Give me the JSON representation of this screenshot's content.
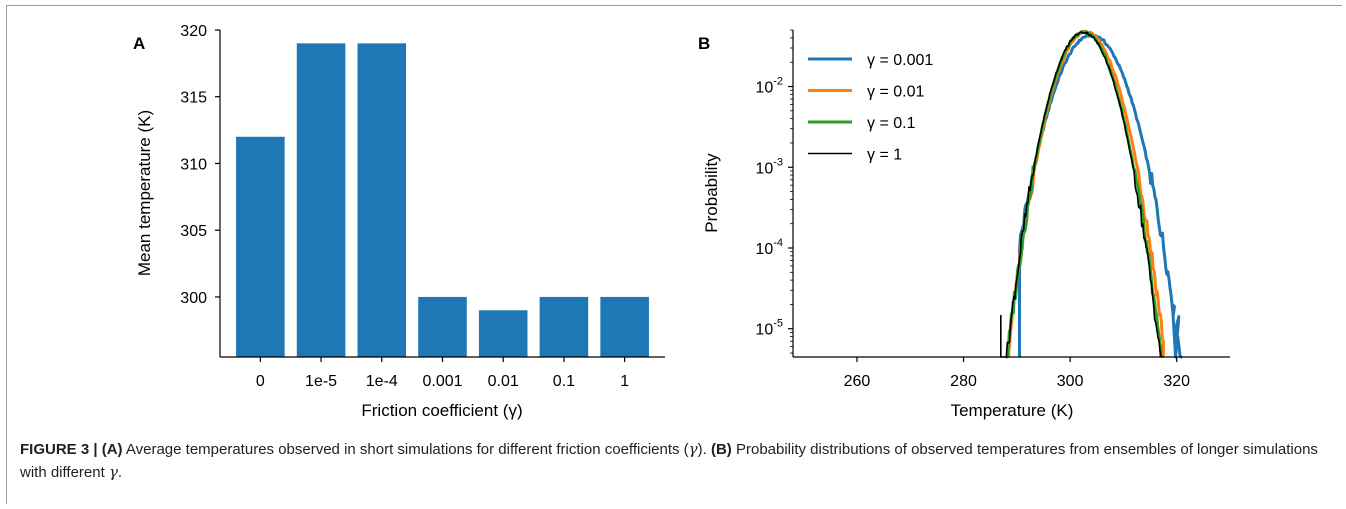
{
  "chart_data": [
    {
      "panel_label": "A",
      "type": "bar",
      "categories": [
        "0",
        "1e-5",
        "1e-4",
        "0.001",
        "0.01",
        "0.1",
        "1"
      ],
      "values": [
        312,
        319,
        319,
        300,
        299,
        300,
        300
      ],
      "xlabel": "Friction coefficient (γ)",
      "ylabel": "Mean temperature (K)",
      "ylim": [
        295.5,
        320
      ],
      "yticks": [
        300,
        305,
        310,
        315,
        320
      ],
      "bar_color": "#1f77b4",
      "grid": false
    },
    {
      "panel_label": "B",
      "type": "line",
      "xlabel": "Temperature (K)",
      "ylabel": "Probability",
      "xlim": [
        248,
        330
      ],
      "ylim_log10": [
        -5.35,
        -1.3
      ],
      "yscale": "log",
      "xticks": [
        260,
        280,
        300,
        320
      ],
      "yticks": [
        {
          "base": "10",
          "exp": "-5",
          "log": -5
        },
        {
          "base": "10",
          "exp": "-4",
          "log": -4
        },
        {
          "base": "10",
          "exp": "-3",
          "log": -3
        },
        {
          "base": "10",
          "exp": "-2",
          "log": -2
        }
      ],
      "legend_position": "top-left",
      "grid": false,
      "series": [
        {
          "name": "γ = 0.001",
          "color": "#1f77b4",
          "width": 3.0,
          "mean": 304.0,
          "sd": 3.9,
          "xmin": 290.5,
          "xmax": 321,
          "x": [
            290.5,
            320.0,
            321.0
          ],
          "peak_prob": 0.0435,
          "tail_probs_log10": [
            -5.35,
            -4.7,
            -5.35
          ]
        },
        {
          "name": "γ = 0.01",
          "color": "#ff7f0e",
          "width": 3.0,
          "mean": 303.0,
          "sd": 3.45,
          "xmin": 288.5,
          "xmax": 317.5,
          "x": [
            288.5,
            317.5
          ],
          "peak_prob": 0.047,
          "tail_probs_log10": [
            -5.35,
            -5.35
          ]
        },
        {
          "name": "γ = 0.1",
          "color": "#2ca02c",
          "width": 3.0,
          "mean": 302.6,
          "sd": 3.35,
          "xmin": 288.0,
          "xmax": 317.0,
          "x": [
            288.0,
            317.0
          ],
          "peak_prob": 0.047,
          "tail_probs_log10": [
            -5.35,
            -5.35
          ]
        },
        {
          "name": "γ = 1",
          "color": "#000000",
          "width": 1.6,
          "mean": 302.5,
          "sd": 3.35,
          "xmin": 287.0,
          "xmax": 317.5,
          "x": [
            287.0,
            317.5
          ],
          "peak_prob": 0.047,
          "tail_probs_log10": [
            -4.83,
            -5.35
          ]
        }
      ]
    }
  ],
  "caption": {
    "figure_label": "FIGURE 3 |",
    "part_a_label": "(A)",
    "part_a_text": "Average temperatures observed in short simulations for different friction coefficients (",
    "gamma": "γ",
    "part_a_end": ").",
    "part_b_label": "(B)",
    "part_b_text": "Probability distributions of observed temperatures from ensembles of longer simulations with different",
    "part_b_end": "."
  }
}
